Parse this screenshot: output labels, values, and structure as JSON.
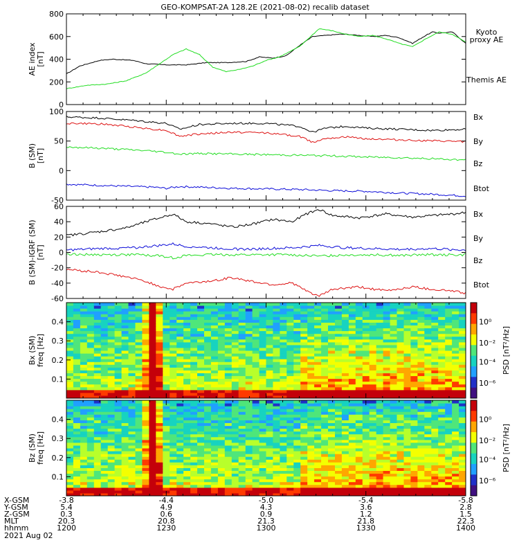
{
  "title": "GEO-KOMPSAT-2A 128.2E (2021-08-02) recalib dataset",
  "colors": {
    "black": "#000000",
    "green": "#22dd22",
    "red": "#dd1111",
    "blue": "#0a0ad8"
  },
  "chart_data": [
    {
      "type": "line",
      "panel": "ae",
      "ylabel_lines": [
        "AE index",
        "[nT]"
      ],
      "ylim": [
        0,
        800
      ],
      "yticks": [
        0,
        200,
        400,
        600,
        800
      ],
      "x_range_minutes": [
        0,
        120
      ],
      "legend": [
        {
          "label": "Kyoto",
          "color": "#22dd22"
        },
        {
          "label": "proxy AE",
          "color": "#22dd22"
        },
        {
          "label": "Themis AE",
          "color": "#000000"
        }
      ],
      "series": [
        {
          "name": "Themis AE",
          "color": "#000000",
          "x": [
            0,
            4,
            10,
            14,
            20,
            24,
            30,
            36,
            42,
            48,
            54,
            58,
            62,
            66,
            70,
            74,
            78,
            82,
            84,
            88,
            92,
            96,
            100,
            104,
            108,
            110,
            112,
            116,
            120
          ],
          "y": [
            270,
            340,
            390,
            400,
            390,
            360,
            350,
            350,
            370,
            370,
            380,
            420,
            410,
            430,
            520,
            600,
            610,
            620,
            620,
            610,
            600,
            610,
            590,
            540,
            610,
            640,
            630,
            640,
            540
          ]
        },
        {
          "name": "Kyoto proxy AE",
          "color": "#22dd22",
          "x": [
            0,
            6,
            12,
            18,
            24,
            28,
            32,
            36,
            40,
            44,
            48,
            52,
            56,
            60,
            64,
            70,
            76,
            80,
            84,
            88,
            92,
            96,
            100,
            104,
            108,
            112,
            116,
            120
          ],
          "y": [
            140,
            170,
            180,
            210,
            280,
            360,
            440,
            490,
            440,
            330,
            290,
            310,
            340,
            390,
            420,
            510,
            670,
            650,
            620,
            600,
            610,
            580,
            540,
            510,
            580,
            640,
            620,
            550
          ]
        }
      ]
    },
    {
      "type": "line",
      "panel": "b_sm",
      "ylabel_lines": [
        "B (SM)",
        "[nT]"
      ],
      "ylim": [
        -50,
        100
      ],
      "yticks": [
        -50,
        0,
        50,
        100
      ],
      "x_range_minutes": [
        0,
        120
      ],
      "legend": [
        {
          "label": "Bx",
          "color": "#0a0ad8"
        },
        {
          "label": "By",
          "color": "#22dd22"
        },
        {
          "label": "Bz",
          "color": "#dd1111"
        },
        {
          "label": "Btot",
          "color": "#000000"
        }
      ],
      "series": [
        {
          "name": "Btot",
          "color": "#000000",
          "x": [
            0,
            10,
            20,
            26,
            30,
            34,
            40,
            50,
            60,
            70,
            74,
            78,
            84,
            90,
            100,
            110,
            120
          ],
          "y": [
            91,
            89,
            85,
            82,
            80,
            70,
            78,
            80,
            80,
            75,
            65,
            72,
            75,
            72,
            70,
            68,
            70
          ]
        },
        {
          "name": "Bz",
          "color": "#dd1111",
          "x": [
            0,
            10,
            20,
            26,
            30,
            34,
            40,
            50,
            60,
            70,
            74,
            78,
            84,
            90,
            100,
            110,
            120
          ],
          "y": [
            80,
            79,
            74,
            70,
            68,
            58,
            62,
            65,
            64,
            58,
            48,
            55,
            57,
            54,
            52,
            50,
            49
          ]
        },
        {
          "name": "By",
          "color": "#22dd22",
          "x": [
            0,
            10,
            20,
            26,
            30,
            34,
            40,
            50,
            60,
            70,
            80,
            90,
            100,
            110,
            120
          ],
          "y": [
            40,
            38,
            35,
            33,
            31,
            28,
            29,
            28,
            27,
            26,
            25,
            23,
            22,
            20,
            18
          ]
        },
        {
          "name": "Bx",
          "color": "#0a0ad8",
          "x": [
            0,
            10,
            20,
            26,
            30,
            34,
            40,
            50,
            60,
            70,
            80,
            90,
            100,
            110,
            120
          ],
          "y": [
            -23,
            -25,
            -27,
            -28,
            -30,
            -27,
            -28,
            -30,
            -31,
            -32,
            -34,
            -35,
            -38,
            -40,
            -43
          ]
        }
      ]
    },
    {
      "type": "line",
      "panel": "b_minus_igrf",
      "ylabel_lines": [
        "B (SM)-IGRF (SM)",
        "[nT]"
      ],
      "ylim": [
        -60,
        60
      ],
      "yticks": [
        -60,
        -40,
        -20,
        0,
        20,
        40,
        60
      ],
      "x_range_minutes": [
        0,
        120
      ],
      "legend": [
        {
          "label": "Bx",
          "color": "#0a0ad8"
        },
        {
          "label": "By",
          "color": "#22dd22"
        },
        {
          "label": "Bz",
          "color": "#dd1111"
        },
        {
          "label": "Btot",
          "color": "#000000"
        }
      ],
      "series": [
        {
          "name": "Btot",
          "color": "#000000",
          "x": [
            0,
            10,
            18,
            24,
            28,
            32,
            36,
            42,
            50,
            56,
            62,
            68,
            72,
            76,
            80,
            88,
            96,
            104,
            110,
            116,
            120
          ],
          "y": [
            22,
            27,
            32,
            40,
            45,
            50,
            40,
            38,
            33,
            37,
            43,
            40,
            50,
            56,
            48,
            45,
            50,
            46,
            48,
            50,
            52
          ]
        },
        {
          "name": "Bz",
          "color": "#dd1111",
          "x": [
            0,
            10,
            18,
            24,
            28,
            32,
            36,
            42,
            50,
            56,
            62,
            68,
            72,
            76,
            80,
            88,
            96,
            104,
            110,
            116,
            120
          ],
          "y": [
            -22,
            -26,
            -32,
            -38,
            -44,
            -48,
            -40,
            -38,
            -33,
            -38,
            -42,
            -40,
            -50,
            -57,
            -48,
            -45,
            -50,
            -45,
            -48,
            -50,
            -53
          ]
        },
        {
          "name": "By",
          "color": "#22dd22",
          "x": [
            0,
            10,
            20,
            28,
            32,
            36,
            44,
            52,
            60,
            68,
            76,
            84,
            92,
            100,
            110,
            120
          ],
          "y": [
            -2,
            -3,
            -3,
            -4,
            -7,
            -4,
            -3,
            -3,
            -3,
            -3,
            -5,
            -3,
            -3,
            -4,
            -3,
            -3
          ]
        },
        {
          "name": "Bx",
          "color": "#0a0ad8",
          "x": [
            0,
            10,
            20,
            28,
            32,
            36,
            44,
            52,
            60,
            68,
            76,
            84,
            92,
            100,
            110,
            120
          ],
          "y": [
            3,
            5,
            6,
            9,
            11,
            8,
            6,
            4,
            5,
            6,
            9,
            6,
            5,
            4,
            5,
            3
          ]
        }
      ]
    },
    {
      "type": "heatmap",
      "panel": "spec_bx",
      "ylabel_lines": [
        "Bx (SM)",
        "freq [Hz]"
      ],
      "yticks": [
        0.1,
        0.2,
        0.3,
        0.4
      ],
      "ylim": [
        0,
        0.5
      ],
      "colorbar_label": "PSD [nT²/Hz]",
      "colorbar_ticks": [
        "10⁰",
        "10⁻²",
        "10⁻⁴",
        "10⁻⁶"
      ]
    },
    {
      "type": "heatmap",
      "panel": "spec_bz",
      "ylabel_lines": [
        "Bz (SM)",
        "freq [Hz]"
      ],
      "yticks": [
        0.1,
        0.2,
        0.3,
        0.4
      ],
      "ylim": [
        0,
        0.5
      ],
      "colorbar_label": "PSD [nT²/Hz]",
      "colorbar_ticks": [
        "10⁰",
        "10⁻²",
        "10⁻⁴",
        "10⁻⁶"
      ]
    }
  ],
  "orbit_labels": [
    "X-GSM",
    "Y-GSM",
    "Z-GSM",
    "MLT",
    "hhmm"
  ],
  "orbit_columns": [
    [
      "-3.8",
      "5.4",
      "0.3",
      "20.3",
      "1200"
    ],
    [
      "-4.4",
      "4.9",
      "0.6",
      "20.8",
      "1230"
    ],
    [
      "-5.0",
      "4.3",
      "0.9",
      "21.3",
      "1300"
    ],
    [
      "-5.4",
      "3.6",
      "1.2",
      "21.8",
      "1330"
    ],
    [
      "-5.8",
      "2.8",
      "1.5",
      "22.3",
      "1400"
    ]
  ],
  "date_label": "2021 Aug 02"
}
